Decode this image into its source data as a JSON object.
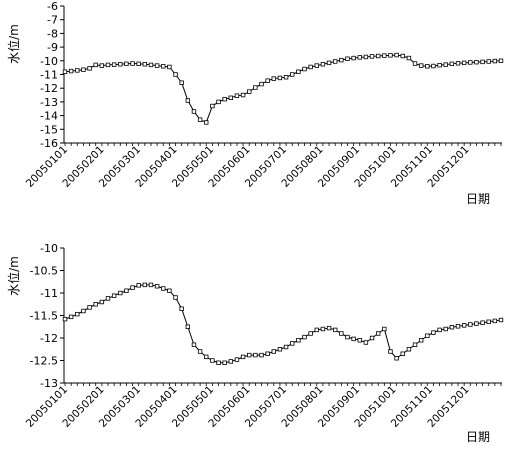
{
  "chart_data": [
    {
      "type": "line",
      "title": "",
      "ylabel": "水位/m",
      "xlabel": "日期",
      "ylim": [
        -16,
        -6
      ],
      "yticks": [
        -6,
        -7,
        -8,
        -9,
        -10,
        -11,
        -12,
        -13,
        -14,
        -15,
        -16
      ],
      "yticks_labels": [
        "-6",
        "-7",
        "-8",
        "-9",
        "-10",
        "-11",
        "-12",
        "-13",
        "-14",
        "-15",
        "-16"
      ],
      "x_tick_labels": [
        "20050101",
        "20050201",
        "20050301",
        "20050401",
        "20050501",
        "20050601",
        "20050701",
        "20050801",
        "20050901",
        "20051001",
        "20051101",
        "20051201"
      ],
      "grid": false,
      "marker": "square",
      "series": [
        {
          "values": [
            -10.8,
            -10.75,
            -10.7,
            -10.65,
            -10.55,
            -10.3,
            -10.35,
            -10.3,
            -10.28,
            -10.25,
            -10.22,
            -10.2,
            -10.22,
            -10.25,
            -10.3,
            -10.35,
            -10.4,
            -10.45,
            -11.0,
            -11.6,
            -12.9,
            -13.7,
            -14.3,
            -14.5,
            -13.3,
            -13.0,
            -12.8,
            -12.7,
            -12.55,
            -12.5,
            -12.25,
            -11.95,
            -11.7,
            -11.45,
            -11.3,
            -11.25,
            -11.2,
            -11.0,
            -10.8,
            -10.6,
            -10.45,
            -10.35,
            -10.25,
            -10.15,
            -10.05,
            -9.95,
            -9.85,
            -9.8,
            -9.75,
            -9.72,
            -9.68,
            -9.65,
            -9.62,
            -9.6,
            -9.58,
            -9.65,
            -9.8,
            -10.2,
            -10.35,
            -10.4,
            -10.38,
            -10.32,
            -10.28,
            -10.22,
            -10.18,
            -10.15,
            -10.12,
            -10.1,
            -10.08,
            -10.05,
            -10.02,
            -10.0
          ]
        }
      ]
    },
    {
      "type": "line",
      "title": "",
      "ylabel": "水位/m",
      "xlabel": "日期",
      "ylim": [
        -13,
        -10
      ],
      "yticks": [
        -10,
        -10.5,
        -11,
        -11.5,
        -12,
        -12.5,
        -13
      ],
      "yticks_labels": [
        "-10",
        "-10.5",
        "-11",
        "-11.5",
        "-12",
        "-12.5",
        "-13"
      ],
      "x_tick_labels": [
        "20050101",
        "20050201",
        "20050301",
        "20050401",
        "20050501",
        "20050601",
        "20050701",
        "20050801",
        "20050901",
        "20051001",
        "20051101",
        "20051201"
      ],
      "grid": false,
      "marker": "square",
      "series": [
        {
          "values": [
            -11.58,
            -11.53,
            -11.47,
            -11.4,
            -11.32,
            -11.25,
            -11.2,
            -11.12,
            -11.06,
            -11.0,
            -10.95,
            -10.88,
            -10.83,
            -10.82,
            -10.82,
            -10.85,
            -10.9,
            -10.95,
            -11.1,
            -11.35,
            -11.75,
            -12.15,
            -12.3,
            -12.42,
            -12.5,
            -12.55,
            -12.55,
            -12.52,
            -12.48,
            -12.42,
            -12.38,
            -12.38,
            -12.38,
            -12.35,
            -12.3,
            -12.25,
            -12.2,
            -12.12,
            -12.05,
            -11.98,
            -11.9,
            -11.82,
            -11.8,
            -11.78,
            -11.82,
            -11.9,
            -11.98,
            -12.02,
            -12.05,
            -12.1,
            -12.0,
            -11.9,
            -11.8,
            -12.3,
            -12.45,
            -12.35,
            -12.25,
            -12.15,
            -12.05,
            -11.95,
            -11.88,
            -11.82,
            -11.8,
            -11.76,
            -11.74,
            -11.72,
            -11.7,
            -11.68,
            -11.66,
            -11.64,
            -11.62,
            -11.6
          ]
        }
      ]
    }
  ]
}
